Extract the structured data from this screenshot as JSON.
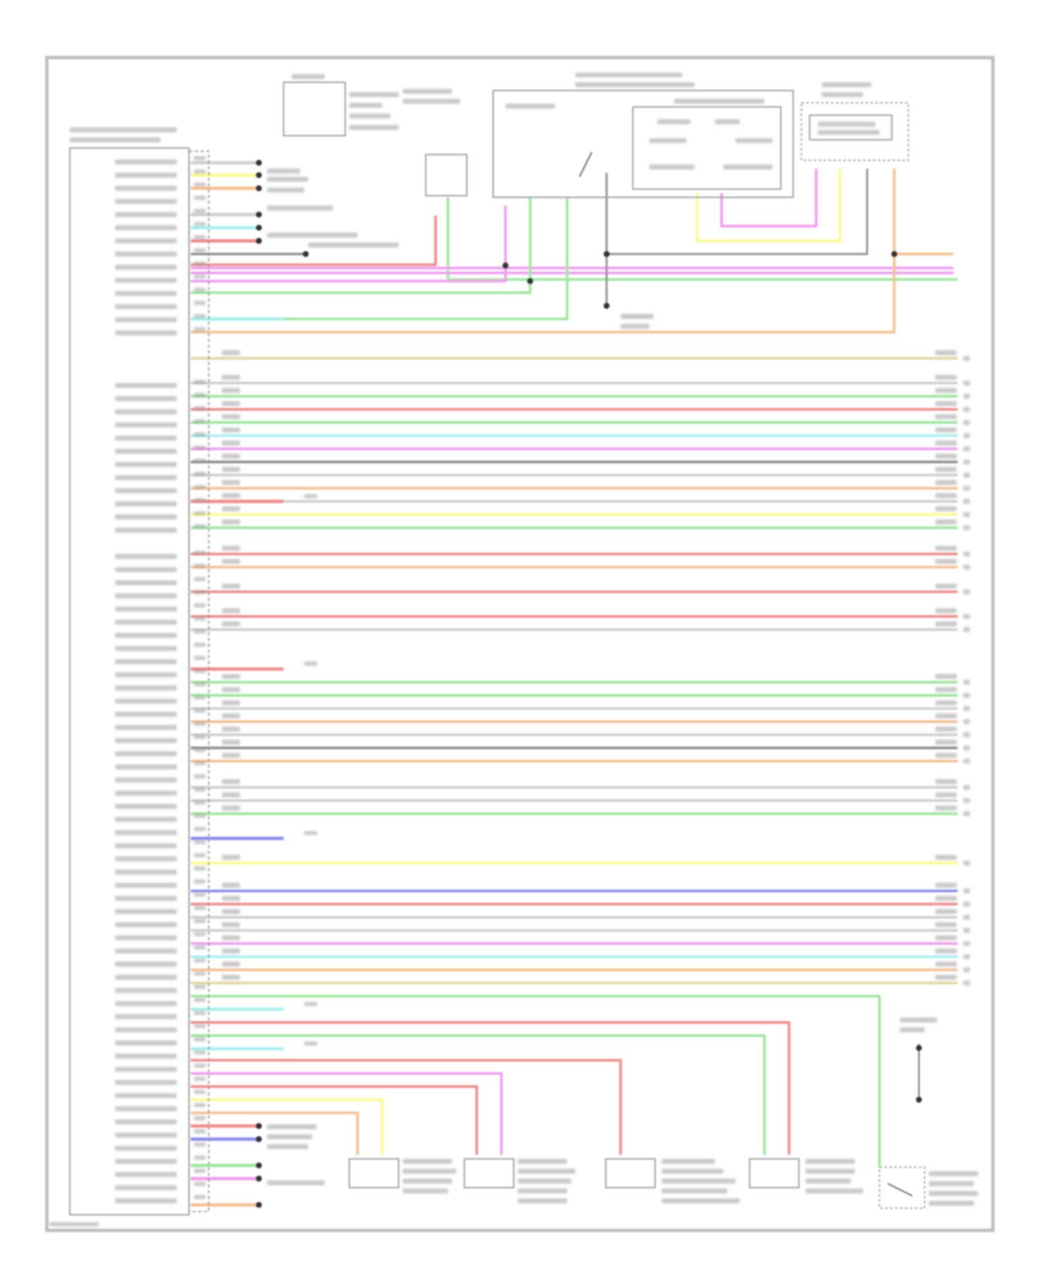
{
  "diagram": {
    "type": "wiring-schematic",
    "text_legible": false,
    "palette": {
      "red": "#f28a8a",
      "green": "#9be89b",
      "magenta": "#f09cf0",
      "cyan": "#a6f0f0",
      "yellow": "#fbfb8e",
      "orange": "#f5c08e",
      "tan": "#e6d6a0",
      "gray": "#cfcfcf",
      "darkgray": "#8e8e8e",
      "blue": "#8c8cef",
      "frame": "#bdbdbd",
      "ink": "#555555"
    },
    "components": [
      {
        "kind": "control-module"
      },
      {
        "kind": "fuse-block"
      },
      {
        "kind": "switch-assembly"
      },
      {
        "kind": "combination-switch"
      },
      {
        "kind": "power-window-switch"
      },
      {
        "kind": "door-lock-actuator"
      },
      {
        "kind": "door-lock-actuator"
      },
      {
        "kind": "door-lock-actuator"
      },
      {
        "kind": "door-lock-actuator"
      },
      {
        "kind": "door-switch"
      },
      {
        "kind": "ground"
      }
    ]
  }
}
